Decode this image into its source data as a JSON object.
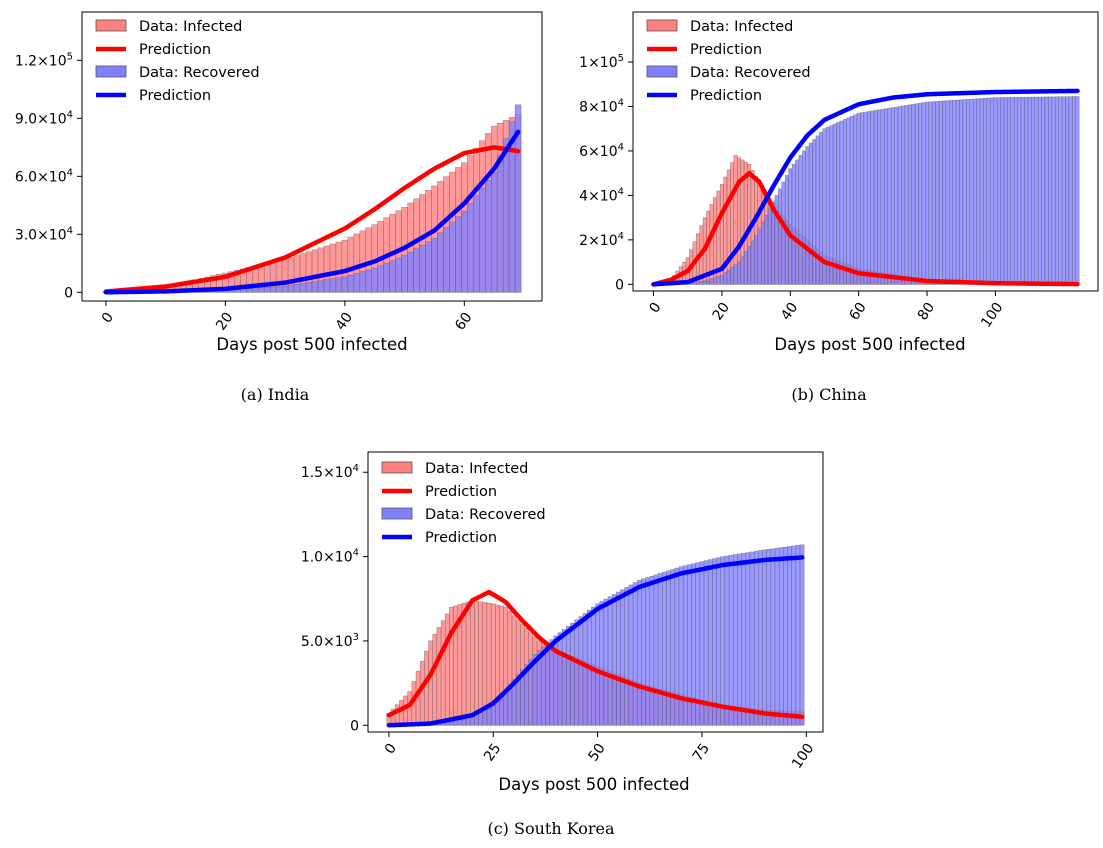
{
  "charts": [
    {
      "caption": "(a) India",
      "chart_data": {
        "type": "bar",
        "title": "",
        "xlabel": "Days post 500 infected",
        "ylabel": "",
        "xlim": [
          -4,
          73
        ],
        "ylim": [
          -4500,
          145000
        ],
        "xticks": [
          0,
          20,
          40,
          60
        ],
        "xtick_labels": [
          "0",
          "20",
          "40",
          "60"
        ],
        "yticks": [
          0,
          30000,
          60000,
          90000,
          120000
        ],
        "ytick_labels": [
          {
            "mant": "0",
            "exp": ""
          },
          {
            "mant": "3.0×10",
            "exp": "4"
          },
          {
            "mant": "6.0×10",
            "exp": "4"
          },
          {
            "mant": "9.0×10",
            "exp": "4"
          },
          {
            "mant": "1.2×10",
            "exp": "5"
          }
        ],
        "legend": [
          "Data: Infected",
          "Prediction",
          "Data: Recovered",
          "Prediction"
        ],
        "legend_position": "top-left",
        "grid": false,
        "series": [
          {
            "name": "Data: Infected",
            "kind": "bar",
            "color": "#ff8080",
            "x": [
              0,
              10,
              20,
              30,
              40,
              45,
              50,
              55,
              60,
              65,
              69
            ],
            "y": [
              500,
              3000,
              10000,
              17000,
              27000,
              35000,
              44000,
              55000,
              67000,
              86000,
              92000
            ]
          },
          {
            "name": "Prediction",
            "kind": "line",
            "color": "#ff0000",
            "x": [
              0,
              10,
              20,
              30,
              40,
              45,
              50,
              55,
              60,
              65,
              69
            ],
            "y": [
              400,
              3000,
              8000,
              18000,
              33000,
              43000,
              54000,
              64000,
              72000,
              75000,
              73000
            ]
          },
          {
            "name": "Data: Recovered",
            "kind": "bar",
            "color": "#8080ff",
            "x": [
              0,
              10,
              20,
              30,
              40,
              45,
              50,
              55,
              60,
              65,
              69
            ],
            "y": [
              100,
              400,
              1200,
              3200,
              8000,
              12500,
              19000,
              28000,
              42000,
              62000,
              97000
            ]
          },
          {
            "name": "Prediction",
            "kind": "line",
            "color": "#0000ff",
            "x": [
              0,
              10,
              20,
              30,
              40,
              45,
              50,
              55,
              60,
              65,
              69
            ],
            "y": [
              0,
              500,
              1800,
              5000,
              11000,
              16000,
              23000,
              32000,
              46000,
              64000,
              83000
            ]
          }
        ]
      }
    },
    {
      "caption": "(b) China",
      "chart_data": {
        "type": "bar",
        "title": "",
        "xlabel": "Days post 500 infected",
        "ylabel": "",
        "xlim": [
          -6,
          130
        ],
        "ylim": [
          -3000,
          122500
        ],
        "xticks": [
          0,
          20,
          40,
          60,
          80,
          100
        ],
        "xtick_labels": [
          "0",
          "20",
          "40",
          "60",
          "80",
          "100"
        ],
        "yticks": [
          0,
          20000,
          40000,
          60000,
          80000,
          100000
        ],
        "ytick_labels": [
          {
            "mant": "0",
            "exp": ""
          },
          {
            "mant": "2×10",
            "exp": "4"
          },
          {
            "mant": "4×10",
            "exp": "4"
          },
          {
            "mant": "6×10",
            "exp": "4"
          },
          {
            "mant": "8×10",
            "exp": "4"
          },
          {
            "mant": "1×10",
            "exp": "5"
          }
        ],
        "legend": [
          "Data: Infected",
          "Prediction",
          "Data: Recovered",
          "Prediction"
        ],
        "legend_position": "top-left",
        "grid": false,
        "series": [
          {
            "name": "Data: Infected",
            "kind": "bar",
            "color": "#ff8080",
            "x": [
              0,
              5,
              10,
              15,
              20,
              24,
              28,
              32,
              36,
              40,
              50,
              60,
              80,
              100,
              124
            ],
            "y": [
              500,
              2000,
              12000,
              30000,
              45000,
              58000,
              54000,
              43000,
              35000,
              27000,
              13000,
              7000,
              2000,
              500,
              100
            ]
          },
          {
            "name": "Prediction",
            "kind": "line",
            "color": "#ff0000",
            "x": [
              0,
              5,
              10,
              15,
              20,
              25,
              28,
              31,
              35,
              40,
              50,
              60,
              80,
              100,
              124
            ],
            "y": [
              0,
              2000,
              6000,
              16000,
              32000,
              46000,
              50000,
              46000,
              34000,
              22000,
              10000,
              5000,
              1500,
              500,
              100
            ]
          },
          {
            "name": "Data: Recovered",
            "kind": "bar",
            "color": "#8080ff",
            "x": [
              0,
              5,
              10,
              15,
              20,
              25,
              30,
              35,
              40,
              45,
              50,
              60,
              80,
              100,
              124
            ],
            "y": [
              0,
              100,
              500,
              1500,
              4000,
              10000,
              22000,
              37000,
              52000,
              62000,
              70000,
              77000,
              82000,
              84000,
              84500
            ]
          },
          {
            "name": "Prediction",
            "kind": "line",
            "color": "#0000ff",
            "x": [
              0,
              10,
              20,
              25,
              30,
              35,
              40,
              45,
              50,
              60,
              70,
              80,
              100,
              124
            ],
            "y": [
              0,
              1000,
              7000,
              17000,
              30000,
              44000,
              57000,
              67000,
              74000,
              81000,
              84000,
              85500,
              86500,
              87000
            ]
          }
        ]
      }
    },
    {
      "caption": "(c) South Korea",
      "chart_data": {
        "type": "bar",
        "title": "",
        "xlabel": "Days post 500 infected",
        "ylabel": "",
        "xlim": [
          -5,
          104
        ],
        "ylim": [
          -400,
          16200
        ],
        "xticks": [
          0,
          25,
          50,
          75,
          100
        ],
        "xtick_labels": [
          "0",
          "25",
          "50",
          "75",
          "100"
        ],
        "yticks": [
          0,
          5000,
          10000,
          15000
        ],
        "ytick_labels": [
          {
            "mant": "0",
            "exp": ""
          },
          {
            "mant": "5.0×10",
            "exp": "3"
          },
          {
            "mant": "1.0×10",
            "exp": "4"
          },
          {
            "mant": "1.5×10",
            "exp": "4"
          }
        ],
        "legend": [
          "Data: Infected",
          "Prediction",
          "Data: Recovered",
          "Prediction"
        ],
        "legend_position": "top-left",
        "grid": false,
        "series": [
          {
            "name": "Data: Infected",
            "kind": "bar",
            "color": "#ff8080",
            "x": [
              0,
              5,
              10,
              15,
              20,
              25,
              28,
              32,
              36,
              40,
              50,
              60,
              70,
              80,
              90,
              99
            ],
            "y": [
              700,
              2000,
              5000,
              7000,
              7400,
              7200,
              7000,
              6000,
              5000,
              4500,
              3500,
              2500,
              1800,
              1200,
              900,
              800
            ]
          },
          {
            "name": "Prediction",
            "kind": "line",
            "color": "#ff0000",
            "x": [
              0,
              5,
              10,
              15,
              20,
              24,
              28,
              32,
              36,
              40,
              50,
              60,
              70,
              80,
              90,
              99
            ],
            "y": [
              600,
              1200,
              3000,
              5500,
              7400,
              7900,
              7300,
              6200,
              5200,
              4400,
              3200,
              2300,
              1600,
              1100,
              700,
              500
            ]
          },
          {
            "name": "Data: Recovered",
            "kind": "bar",
            "color": "#8080ff",
            "x": [
              0,
              10,
              20,
              25,
              30,
              35,
              40,
              50,
              60,
              70,
              80,
              90,
              99
            ],
            "y": [
              0,
              50,
              500,
              1200,
              2700,
              4200,
              5300,
              7200,
              8600,
              9400,
              10000,
              10400,
              10700
            ]
          },
          {
            "name": "Prediction",
            "kind": "line",
            "color": "#0000ff",
            "x": [
              0,
              10,
              20,
              25,
              30,
              35,
              40,
              50,
              60,
              70,
              80,
              90,
              99
            ],
            "y": [
              0,
              100,
              600,
              1300,
              2500,
              3800,
              5000,
              6900,
              8200,
              9000,
              9500,
              9800,
              9950
            ]
          }
        ]
      }
    }
  ]
}
